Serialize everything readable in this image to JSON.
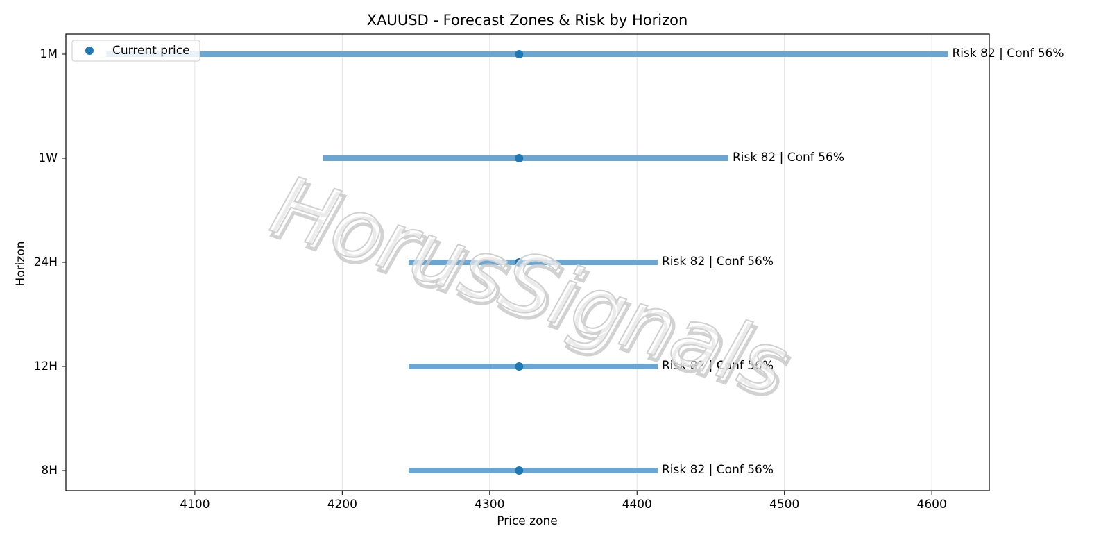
{
  "chart_data": {
    "type": "range",
    "title": "XAUUSD - Forecast Zones & Risk by Horizon",
    "x_label": "Price zone",
    "y_label": "Horizon",
    "watermark": "HorusSignals",
    "categories": [
      "1M",
      "1W",
      "24H",
      "12H",
      "8H"
    ],
    "low": [
      4040,
      4187,
      4245,
      4245,
      4245
    ],
    "high": [
      4611,
      4462,
      4414,
      4414,
      4414
    ],
    "zone_color": "#6aa6d1",
    "series": [
      {
        "name": "Current price",
        "color": "#1f77b4",
        "values": [
          4320,
          4320,
          4320,
          4320,
          4320
        ]
      }
    ],
    "annotations": [
      "Risk 82 | Conf 56%",
      "Risk 82 | Conf 56%",
      "Risk 82 | Conf 56%",
      "Risk 82 | Conf 56%",
      "Risk 82 | Conf 56%"
    ],
    "xlim": [
      4012.5,
      4639
    ],
    "xticks": [
      4100,
      4200,
      4300,
      4400,
      4500,
      4600
    ],
    "grid": true,
    "legend": "upper left"
  }
}
